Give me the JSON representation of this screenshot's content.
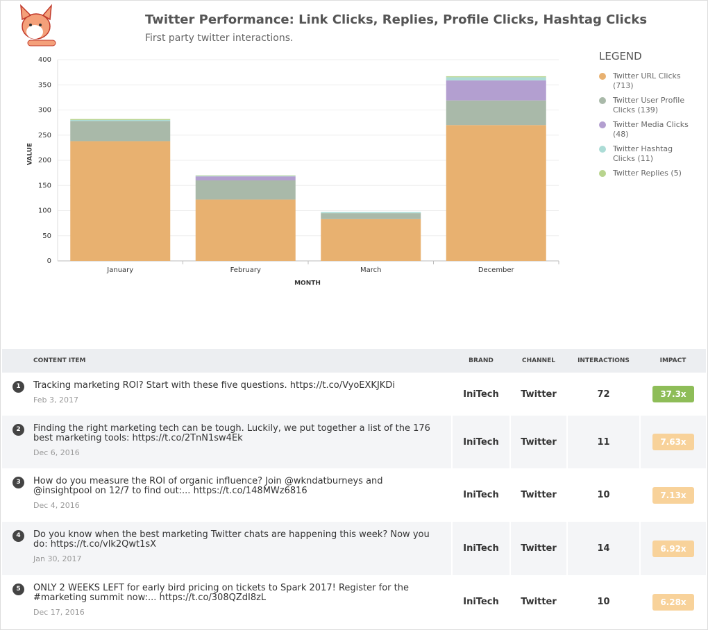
{
  "chart_data": {
    "type": "stacked_bar",
    "title": "Twitter Performance: Link Clicks, Replies, Profile Clicks, Hashtag Clicks",
    "subtitle": "First party twitter interactions.",
    "x_label": "MONTH",
    "y_label": "VALUE",
    "categories": [
      "January",
      "February",
      "March",
      "December"
    ],
    "series": [
      {
        "name": "Twitter URL Clicks (713)",
        "color": "#e8b170",
        "values": [
          238,
          122,
          83,
          270
        ]
      },
      {
        "name": "Twitter User Profile Clicks (139)",
        "color": "#a9b9a9",
        "values": [
          40,
          38,
          12,
          49
        ]
      },
      {
        "name": "Twitter Media Clicks (48)",
        "color": "#b39fd0",
        "values": [
          0,
          8,
          0,
          40
        ]
      },
      {
        "name": "Twitter Hashtag Clicks (11)",
        "color": "#acdcd6",
        "values": [
          2,
          1,
          2,
          6
        ]
      },
      {
        "name": "Twitter Replies (5)",
        "color": "#b8d48e",
        "values": [
          2,
          1,
          0,
          2
        ]
      }
    ],
    "ylim": [
      0,
      400
    ],
    "yticks": [
      0,
      50,
      100,
      150,
      200,
      250,
      300,
      350,
      400
    ],
    "grid": true,
    "legend_title": "LEGEND",
    "legend": "right"
  },
  "table": {
    "headers": [
      "CONTENT ITEM",
      "BRAND",
      "CHANNEL",
      "INTERACTIONS",
      "IMPACT"
    ],
    "rows": [
      {
        "rank": 1,
        "text": "Tracking marketing ROI? Start with these five questions. https://t.co/VyoEXKJKDi",
        "date": "Feb 3, 2017",
        "brand": "IniTech",
        "channel": "Twitter",
        "interactions": 72,
        "impact": "37.3x",
        "impact_color": "#8ebd58"
      },
      {
        "rank": 2,
        "text": "Finding the right marketing tech can be tough. Luckily, we put together a list of the 176 best marketing tools: https://t.co/2TnN1sw4Ek",
        "date": "Dec 6, 2016",
        "brand": "IniTech",
        "channel": "Twitter",
        "interactions": 11,
        "impact": "7.63x",
        "impact_color": "#f8d29a"
      },
      {
        "rank": 3,
        "text": "How do you measure the ROI of organic influence? Join @wkndatburneys and @insightpool on 12/7 to find out:... https://t.co/148MWz6816",
        "date": "Dec 4, 2016",
        "brand": "IniTech",
        "channel": "Twitter",
        "interactions": 10,
        "impact": "7.13x",
        "impact_color": "#f8d29a"
      },
      {
        "rank": 4,
        "text": "Do you know when the best marketing Twitter chats are happening this week? Now you do: https://t.co/vlk2Qwt1sX",
        "date": "Jan 30, 2017",
        "brand": "IniTech",
        "channel": "Twitter",
        "interactions": 14,
        "impact": "6.92x",
        "impact_color": "#f8d29a"
      },
      {
        "rank": 5,
        "text": "ONLY 2 WEEKS LEFT for early bird pricing on tickets to Spark 2017! Register for the #marketing summit now:... https://t.co/308QZdI8zL",
        "date": "Dec 17, 2016",
        "brand": "IniTech",
        "channel": "Twitter",
        "interactions": 10,
        "impact": "6.28x",
        "impact_color": "#f8d29a"
      }
    ]
  }
}
